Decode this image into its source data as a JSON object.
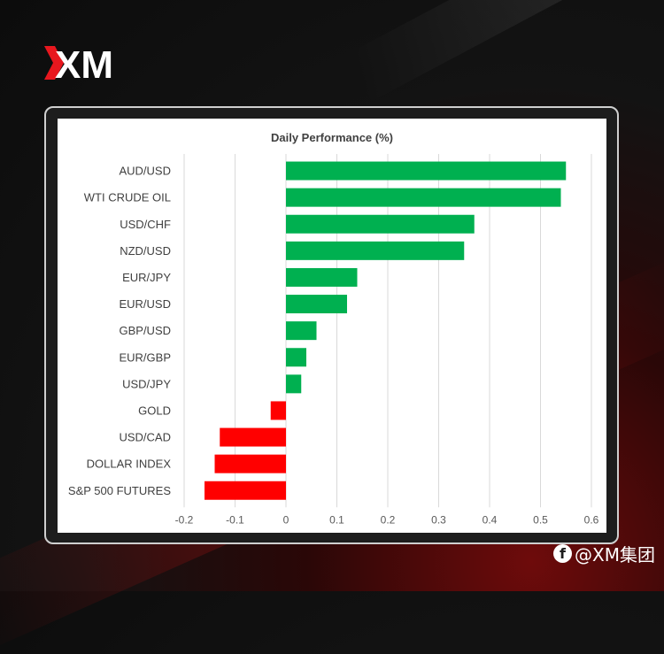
{
  "brand": {
    "logo_text": "XM",
    "logo_icon": "xm-logo-icon",
    "mark_color": "#e8171e"
  },
  "watermark": {
    "icon": "facebook-icon",
    "icon_glyph": "f",
    "text": "@XM集团"
  },
  "colors": {
    "positive": "#00b050",
    "negative": "#ff0000"
  },
  "chart_data": {
    "type": "bar",
    "orientation": "horizontal",
    "title": "Daily Performance (%)",
    "categories": [
      "AUD/USD",
      "WTI CRUDE OIL",
      "USD/CHF",
      "NZD/USD",
      "EUR/JPY",
      "EUR/USD",
      "GBP/USD",
      "EUR/GBP",
      "USD/JPY",
      "GOLD",
      "USD/CAD",
      "DOLLAR INDEX",
      "S&P 500 FUTURES"
    ],
    "values": [
      0.55,
      0.54,
      0.37,
      0.35,
      0.14,
      0.12,
      0.06,
      0.04,
      0.03,
      -0.03,
      -0.13,
      -0.14,
      -0.16
    ],
    "xlim": [
      -0.2,
      0.6
    ],
    "xticks": [
      -0.2,
      -0.1,
      0,
      0.1,
      0.2,
      0.3,
      0.4,
      0.5,
      0.6
    ],
    "xtick_labels": [
      "-0.2",
      "-0.1",
      "0",
      "0.1",
      "0.2",
      "0.3",
      "0.4",
      "0.5",
      "0.6"
    ],
    "grid": "vertical",
    "legend": "none"
  }
}
